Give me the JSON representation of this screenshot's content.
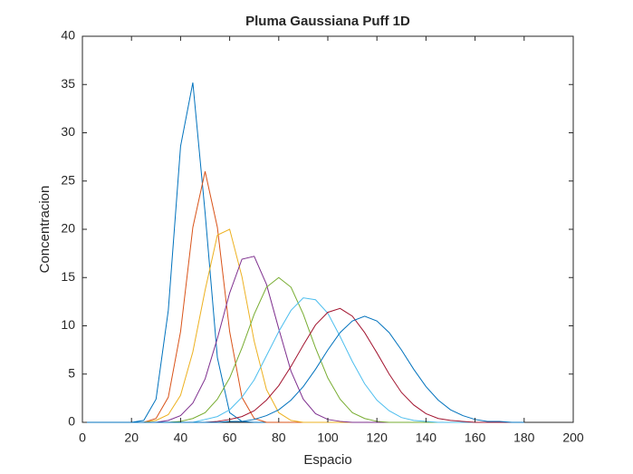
{
  "chart_data": {
    "type": "line",
    "title": "Pluma Gaussiana Puff 1D",
    "x_label": "Espacio",
    "y_label": "Concentracion",
    "x": [
      0,
      5,
      10,
      15,
      20,
      25,
      30,
      35,
      40,
      45,
      50,
      55,
      60,
      65,
      70,
      75,
      80,
      85,
      90,
      95,
      100,
      105,
      110,
      115,
      120,
      125,
      130,
      135,
      140,
      145,
      150,
      155,
      160,
      165,
      170,
      175,
      180
    ],
    "series": [
      {
        "color": "#0072BD",
        "values": [
          0,
          0,
          0,
          0,
          0,
          0.2,
          2.4,
          11.6,
          28.6,
          35.2,
          21.7,
          6.7,
          1.0,
          0.1,
          0,
          0,
          0,
          0,
          0,
          0,
          0,
          0,
          0,
          0,
          0,
          0,
          0,
          0,
          0,
          0,
          0,
          0,
          0,
          0,
          0,
          0,
          0
        ]
      },
      {
        "color": "#D95319",
        "values": [
          0,
          0,
          0,
          0,
          0,
          0,
          0.4,
          2.6,
          9.4,
          20.2,
          26,
          20.2,
          9.4,
          2.6,
          0.4,
          0,
          0,
          0,
          0,
          0,
          0,
          0,
          0,
          0,
          0,
          0,
          0,
          0,
          0,
          0,
          0,
          0,
          0,
          0,
          0,
          0,
          0
        ]
      },
      {
        "color": "#EDB120",
        "values": [
          0,
          0,
          0,
          0,
          0,
          0,
          0.2,
          0.8,
          2.8,
          7.3,
          13.7,
          19.4,
          20.0,
          15.1,
          8.4,
          3.4,
          1.0,
          0.2,
          0,
          0,
          0,
          0,
          0,
          0,
          0,
          0,
          0,
          0,
          0,
          0,
          0,
          0,
          0,
          0,
          0,
          0,
          0
        ]
      },
      {
        "color": "#7E2F8E",
        "values": [
          0,
          0,
          0,
          0,
          0,
          0,
          0,
          0.2,
          0.7,
          2.0,
          4.5,
          8.7,
          13.4,
          16.9,
          17.2,
          14.3,
          9.7,
          5.3,
          2.4,
          0.9,
          0.3,
          0.1,
          0,
          0,
          0,
          0,
          0,
          0,
          0,
          0,
          0,
          0,
          0,
          0,
          0,
          0,
          0
        ]
      },
      {
        "color": "#77AC30",
        "values": [
          0,
          0,
          0,
          0,
          0,
          0,
          0,
          0,
          0.1,
          0.4,
          1.0,
          2.4,
          4.6,
          7.7,
          11.2,
          14.0,
          15,
          14.0,
          11.2,
          7.7,
          4.6,
          2.4,
          1.0,
          0.4,
          0.1,
          0,
          0,
          0,
          0,
          0,
          0,
          0,
          0,
          0,
          0,
          0,
          0
        ]
      },
      {
        "color": "#4DBEEE",
        "values": [
          0,
          0,
          0,
          0,
          0,
          0,
          0,
          0,
          0,
          0,
          0.3,
          0.6,
          1.3,
          2.6,
          4.4,
          6.9,
          9.4,
          11.6,
          12.9,
          12.7,
          11.3,
          8.9,
          6.3,
          4.0,
          2.3,
          1.2,
          0.5,
          0.2,
          0.1,
          0,
          0,
          0,
          0,
          0,
          0,
          0,
          0
        ]
      },
      {
        "color": "#A2142F",
        "values": [
          0,
          0,
          0,
          0,
          0,
          0,
          0,
          0,
          0,
          0,
          0,
          0.1,
          0.3,
          0.6,
          1.2,
          2.3,
          3.8,
          5.8,
          8.0,
          10.1,
          11.4,
          11.8,
          11.0,
          9.3,
          7.2,
          5.0,
          3.1,
          1.8,
          0.9,
          0.4,
          0.2,
          0.1,
          0,
          0,
          0,
          0,
          0
        ]
      },
      {
        "color": "#0072BD",
        "values": [
          0,
          0,
          0,
          0,
          0,
          0,
          0,
          0,
          0,
          0,
          0,
          0,
          0.1,
          0.1,
          0.3,
          0.7,
          1.3,
          2.3,
          3.7,
          5.5,
          7.5,
          9.3,
          10.5,
          11,
          10.5,
          9.3,
          7.5,
          5.5,
          3.7,
          2.3,
          1.3,
          0.7,
          0.3,
          0.1,
          0.1,
          0,
          0
        ]
      }
    ],
    "xlim": [
      0,
      200
    ],
    "xticks": [
      0,
      20,
      40,
      60,
      80,
      100,
      120,
      140,
      160,
      180,
      200
    ],
    "ylim": [
      0,
      40
    ],
    "yticks": [
      0,
      5,
      10,
      15,
      20,
      25,
      30,
      35,
      40
    ]
  }
}
